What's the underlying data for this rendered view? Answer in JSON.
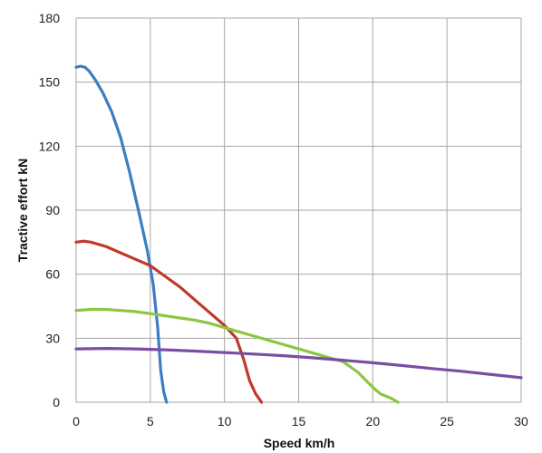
{
  "chart_data": {
    "type": "line",
    "title": "",
    "xlabel": "Speed km/h",
    "ylabel": "Tractive effort kN",
    "xlim": [
      0,
      30
    ],
    "ylim": [
      0,
      180
    ],
    "xticks": [
      0,
      5,
      10,
      15,
      20,
      25,
      30
    ],
    "yticks": [
      0,
      30,
      60,
      90,
      120,
      150,
      180
    ],
    "xtick_labels": [
      "0",
      "5",
      "10",
      "15",
      "20",
      "25",
      "30"
    ],
    "ytick_labels": [
      "0",
      "30",
      "60",
      "90",
      "120",
      "150",
      "180"
    ],
    "grid": true,
    "legend": "none",
    "series": [
      {
        "color": "#3b7ec4",
        "x": [
          0,
          0.3,
          0.6,
          0.9,
          1.3,
          1.8,
          2.4,
          3.0,
          3.6,
          4.2,
          4.8,
          5.2,
          5.5,
          5.7,
          5.9,
          6.1
        ],
        "y": [
          157,
          157.5,
          157,
          155,
          151,
          145,
          136,
          124,
          108,
          90,
          71,
          55,
          35,
          15,
          5,
          0
        ]
      },
      {
        "color": "#c0392b",
        "x": [
          0,
          0.5,
          1,
          2,
          3,
          4,
          5,
          6,
          7,
          8,
          9,
          10,
          10.8,
          11.3,
          11.7,
          12.1,
          12.5
        ],
        "y": [
          75,
          75.5,
          75,
          73,
          70,
          67,
          64,
          59,
          54,
          48,
          42,
          36,
          30,
          20,
          10,
          4,
          0
        ]
      },
      {
        "color": "#8dc63f",
        "x": [
          0,
          1,
          2,
          3,
          4,
          5,
          6,
          7,
          8,
          9,
          10,
          11,
          12,
          13,
          14,
          15,
          16,
          17,
          18,
          19,
          20,
          20.5,
          21.2,
          21.7
        ],
        "y": [
          43,
          43.5,
          43.5,
          43,
          42.5,
          41.5,
          40.5,
          39.5,
          38.5,
          37,
          35,
          33,
          31,
          29,
          27,
          25,
          23,
          21,
          19,
          14,
          7,
          4,
          2,
          0
        ]
      },
      {
        "color": "#7b4ea3",
        "x": [
          0,
          2,
          4,
          6,
          8,
          10,
          12,
          14,
          16,
          18,
          20,
          22,
          24,
          26,
          28,
          30
        ],
        "y": [
          25,
          25.2,
          25,
          24.6,
          24,
          23.3,
          22.6,
          21.8,
          20.8,
          19.7,
          18.5,
          17.2,
          15.8,
          14.5,
          13,
          11.5
        ]
      }
    ]
  }
}
